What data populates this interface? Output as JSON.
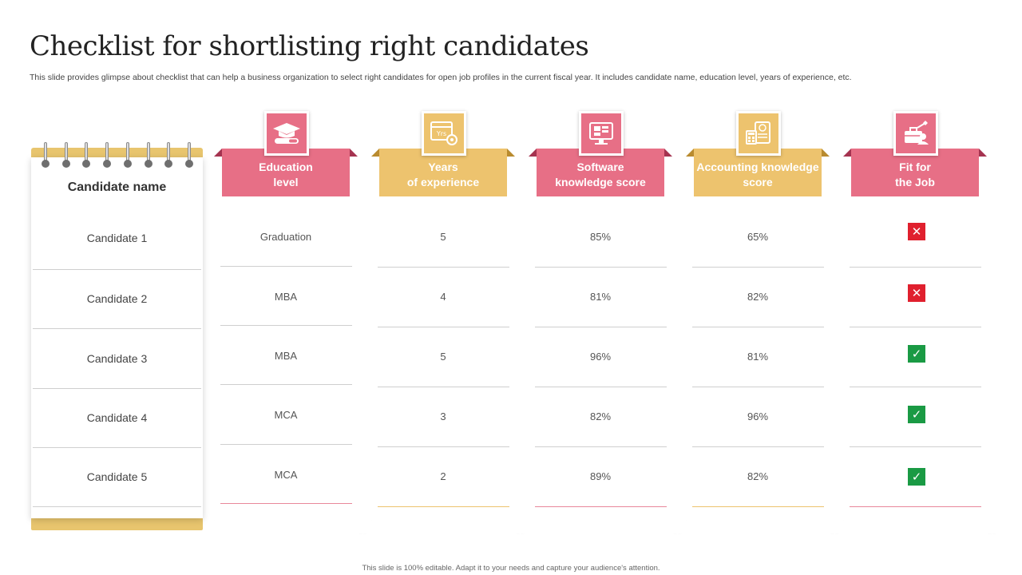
{
  "slide": {
    "title": "Checklist for shortlisting right candidates",
    "subtitle": "This slide provides glimpse about checklist that can help a business organization to select right candidates for open job profiles in the current fiscal year. It includes candidate name, education level, years of experience, etc.",
    "footer": "This slide is 100% editable. Adapt it to your needs and capture your audience's attention."
  },
  "colors": {
    "pink": "#e76f86",
    "gold": "#edc36e",
    "reject": "#e0202e",
    "accept": "#1a9a44"
  },
  "candidates": {
    "header": "Candidate name",
    "names": [
      "Candidate 1",
      "Candidate 2",
      "Candidate 3",
      "Candidate 4",
      "Candidate 5"
    ]
  },
  "columns": [
    {
      "header_line1": "Education",
      "header_line2": "level",
      "icon": "graduation-cap-icon",
      "values": [
        "Graduation",
        "MBA",
        "MBA",
        "MCA",
        "MCA"
      ]
    },
    {
      "header_line1": "Years",
      "header_line2": "of experience",
      "icon": "calendar-years-icon",
      "icon_text": "Yrs",
      "values": [
        "5",
        "4",
        "5",
        "3",
        "2"
      ]
    },
    {
      "header_line1": "Software",
      "header_line2": "knowledge score",
      "icon": "software-monitor-icon",
      "values": [
        "85%",
        "81%",
        "96%",
        "82%",
        "89%"
      ]
    },
    {
      "header_line1": "Accounting knowledge",
      "header_line2": "score",
      "icon": "accounting-calculator-icon",
      "values": [
        "65%",
        "82%",
        "81%",
        "96%",
        "82%"
      ]
    },
    {
      "header_line1": "Fit for",
      "header_line2": "the Job",
      "icon": "job-fit-briefcase-icon",
      "values": [
        "✕",
        "✕",
        "✓",
        "✓",
        "✓"
      ]
    }
  ]
}
